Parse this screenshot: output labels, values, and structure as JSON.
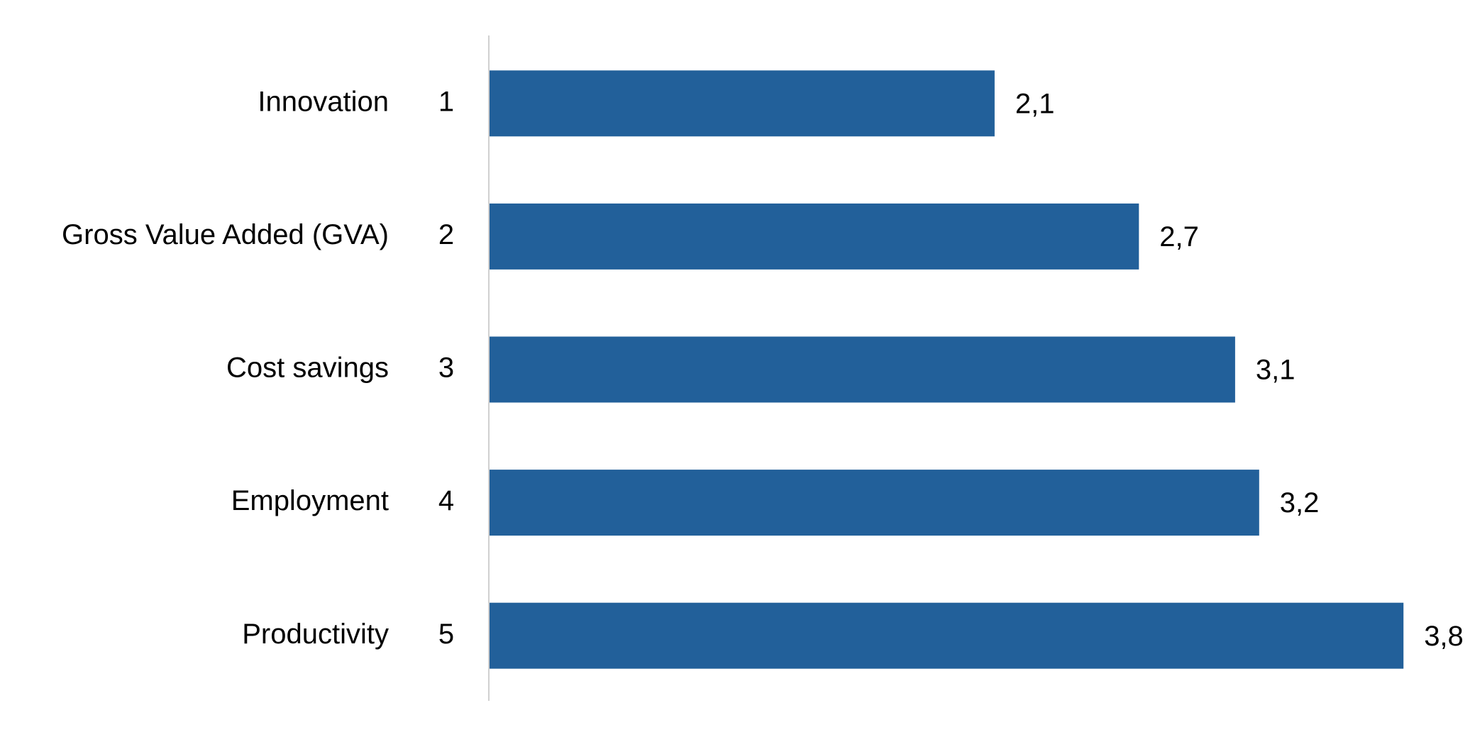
{
  "chart_data": {
    "type": "bar",
    "orientation": "horizontal",
    "categories": [
      "Innovation",
      "Gross Value Added (GVA)",
      "Cost savings",
      "Employment",
      "Productivity"
    ],
    "ranks": [
      1,
      2,
      3,
      4,
      5
    ],
    "values": [
      2.1,
      2.7,
      3.1,
      3.2,
      3.8
    ],
    "value_labels": [
      "2,1",
      "2,7",
      "3,1",
      "3,2",
      "3,8"
    ],
    "color": "#22609a"
  }
}
